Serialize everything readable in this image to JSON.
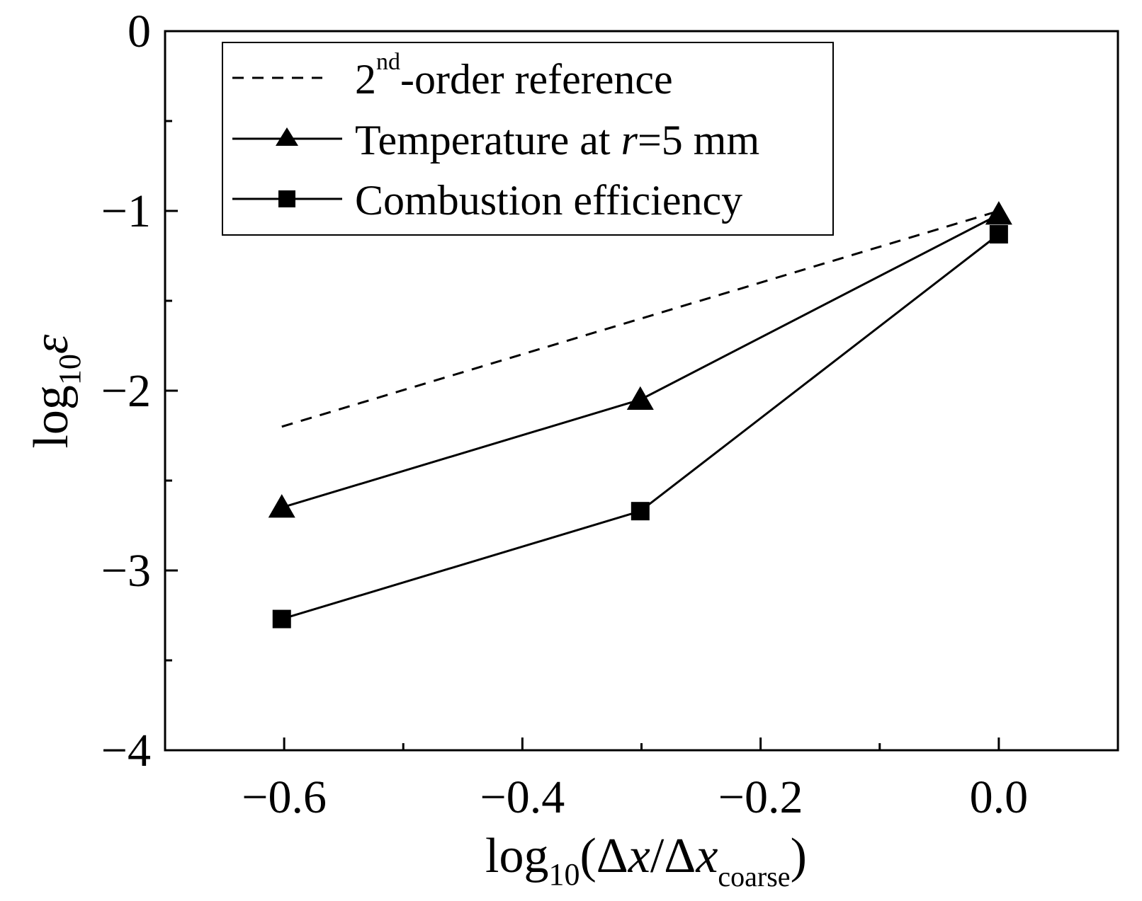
{
  "chart_data": {
    "type": "line",
    "title": "",
    "xlabel": {
      "prefix": "log",
      "prefix_sub": "10",
      "open": "(Δ",
      "var1": "x",
      "slash": "/Δ",
      "var2": "x",
      "sub": "coarse",
      "close": ")"
    },
    "ylabel": {
      "prefix": "log",
      "prefix_sub": "10",
      "symbol": "ε"
    },
    "xlim": [
      -0.7,
      0.1
    ],
    "ylim": [
      -4,
      0
    ],
    "x_ticks": [
      -0.6,
      -0.4,
      -0.2,
      0.0
    ],
    "x_tick_labels": [
      "−0.6",
      "−0.4",
      "−0.2",
      "0.0"
    ],
    "x_minor_ticks": [
      -0.5,
      -0.3,
      -0.1
    ],
    "y_ticks": [
      0,
      -1,
      -2,
      -3,
      -4
    ],
    "y_tick_labels": [
      "0",
      "−1",
      "−2",
      "−3",
      "−4"
    ],
    "y_minor_ticks": [
      -0.5,
      -1.5,
      -2.5,
      -3.5
    ],
    "grid": false,
    "legend_position": "top-left",
    "series": [
      {
        "name": "2nd-order reference",
        "legend": {
          "base": "2",
          "sup": "nd",
          "rest": "-order reference"
        },
        "style": "dashed",
        "marker": "none",
        "x": [
          -0.602,
          -0.301,
          0.0
        ],
        "y": [
          -2.2,
          -1.6,
          -1.0
        ]
      },
      {
        "name": "Temperature at r=5 mm",
        "legend": {
          "before": "Temperature at ",
          "italic": "r",
          "after": "=5 mm"
        },
        "style": "solid",
        "marker": "triangle",
        "x": [
          -0.602,
          -0.301,
          0.0
        ],
        "y": [
          -2.65,
          -2.05,
          -1.02
        ]
      },
      {
        "name": "Combustion efficiency",
        "legend": {
          "before": "Combustion efficiency"
        },
        "style": "solid",
        "marker": "square",
        "x": [
          -0.602,
          -0.301,
          0.0
        ],
        "y": [
          -3.27,
          -2.67,
          -1.13
        ]
      }
    ]
  },
  "colors": {
    "ink": "#000000",
    "background": "#ffffff"
  }
}
